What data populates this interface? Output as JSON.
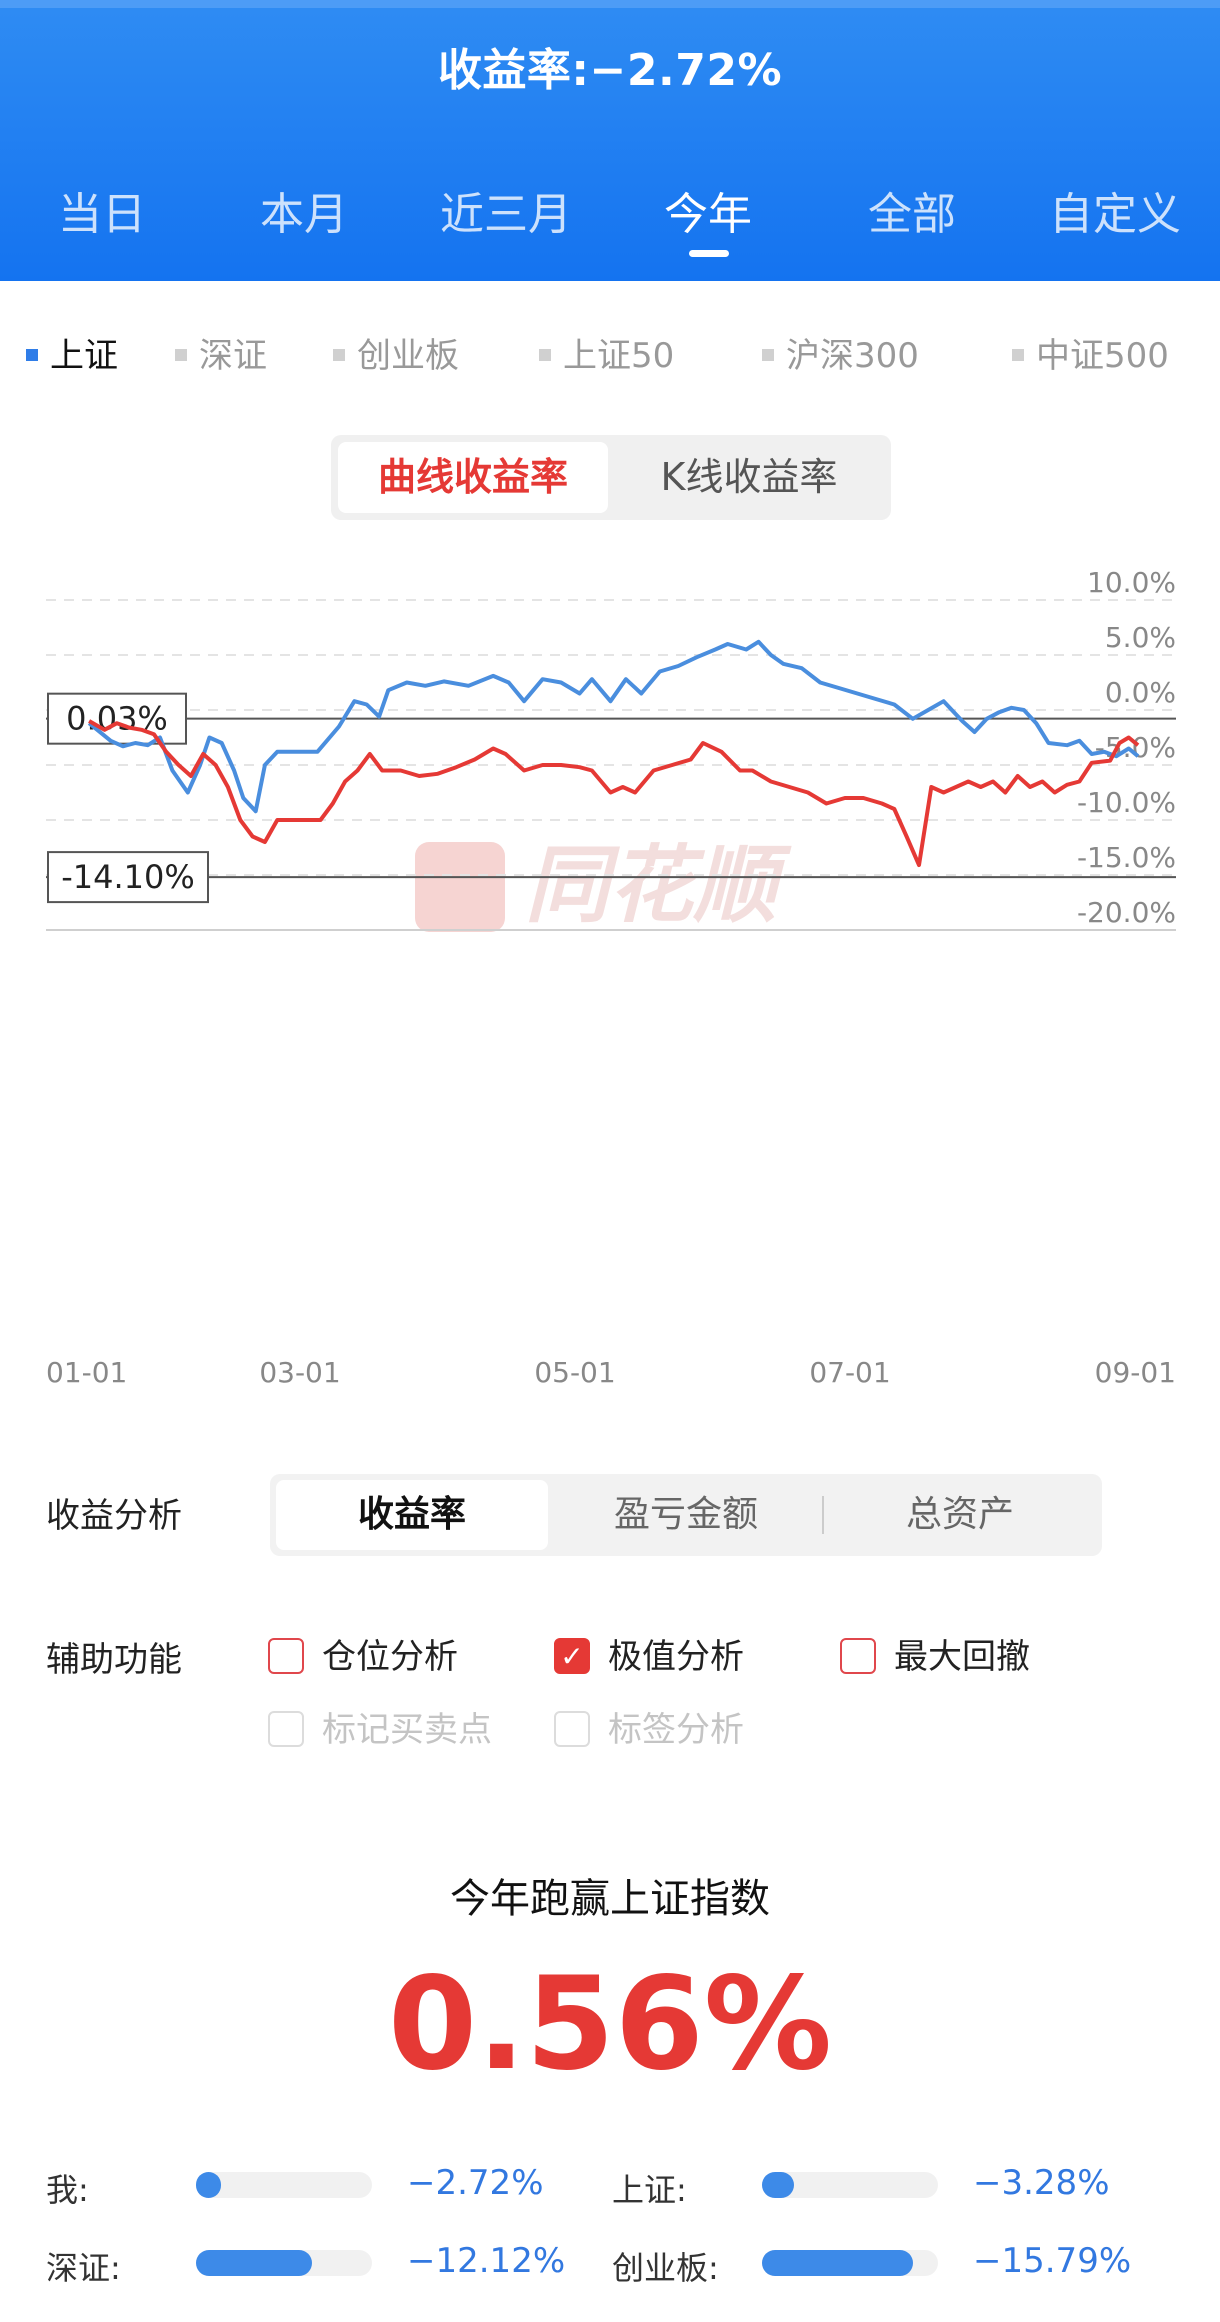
{
  "header": {
    "title": "收益率:−2.72%",
    "tabs": [
      "当日",
      "本月",
      "近三月",
      "今年",
      "全部",
      "自定义"
    ],
    "active_tab": "今年"
  },
  "indices": {
    "items": [
      "上证",
      "深证",
      "创业板",
      "上证50",
      "沪深300",
      "中证500"
    ],
    "active": "上证"
  },
  "chart_toggle": {
    "options": [
      "曲线收益率",
      "K线收益率"
    ],
    "selected": "曲线收益率"
  },
  "watermark": "同花顺",
  "chart_data": {
    "type": "line",
    "x_tick_labels": [
      "01-01",
      "03-01",
      "05-01",
      "07-01",
      "09-01"
    ],
    "y_tick_labels": [
      "10.0%",
      "5.0%",
      "0.0%",
      "-5.0%",
      "-10.0%",
      "-15.0%",
      "-20.0%"
    ],
    "ylim": [
      -20,
      10
    ],
    "y_unit": "%",
    "grid": true,
    "annotations": [
      "0.03%",
      "-14.10%"
    ],
    "series": [
      {
        "color": "#4a8ede",
        "points": [
          [
            1,
            -1.2
          ],
          [
            8,
            -2.8
          ],
          [
            12,
            -3.3
          ],
          [
            16,
            -3.0
          ],
          [
            20,
            -3.2
          ],
          [
            24,
            -2.5
          ],
          [
            28,
            -5.5
          ],
          [
            33,
            -7.5
          ],
          [
            37,
            -5.0
          ],
          [
            40,
            -2.5
          ],
          [
            44,
            -3.0
          ],
          [
            48,
            -5.5
          ],
          [
            51,
            -8.0
          ],
          [
            55,
            -9.2
          ],
          [
            58,
            -5.0
          ],
          [
            62,
            -3.8
          ],
          [
            70,
            -3.8
          ],
          [
            75,
            -3.8
          ],
          [
            82,
            -1.5
          ],
          [
            87,
            0.8
          ],
          [
            91,
            0.5
          ],
          [
            95,
            -0.6
          ],
          [
            98,
            1.8
          ],
          [
            104,
            2.5
          ],
          [
            110,
            2.2
          ],
          [
            116,
            2.6
          ],
          [
            124,
            2.2
          ],
          [
            132,
            3.1
          ],
          [
            137,
            2.5
          ],
          [
            142,
            0.8
          ],
          [
            148,
            2.8
          ],
          [
            154,
            2.5
          ],
          [
            160,
            1.5
          ],
          [
            164,
            2.8
          ],
          [
            170,
            0.8
          ],
          [
            175,
            2.8
          ],
          [
            180,
            1.5
          ],
          [
            186,
            3.5
          ],
          [
            192,
            4.0
          ],
          [
            198,
            4.8
          ],
          [
            204,
            5.5
          ],
          [
            208,
            6.0
          ],
          [
            214,
            5.5
          ],
          [
            218,
            6.2
          ],
          [
            222,
            5.0
          ],
          [
            226,
            4.2
          ],
          [
            232,
            3.8
          ],
          [
            238,
            2.5
          ],
          [
            244,
            2.0
          ],
          [
            250,
            1.5
          ],
          [
            256,
            1.0
          ],
          [
            262,
            0.5
          ],
          [
            268,
            -0.8
          ],
          [
            273,
            0.0
          ],
          [
            278,
            0.8
          ],
          [
            284,
            -1.0
          ],
          [
            288,
            -2.0
          ],
          [
            292,
            -0.8
          ],
          [
            296,
            -0.2
          ],
          [
            300,
            0.2
          ],
          [
            304,
            0.0
          ],
          [
            308,
            -1.2
          ],
          [
            312,
            -3.0
          ],
          [
            318,
            -3.2
          ],
          [
            322,
            -2.8
          ],
          [
            326,
            -4.0
          ],
          [
            330,
            -3.8
          ],
          [
            334,
            -4.2
          ],
          [
            338,
            -3.5
          ],
          [
            341,
            -4.2
          ]
        ]
      },
      {
        "color": "#e53935",
        "points": [
          [
            1,
            -1.0
          ],
          [
            6,
            -1.8
          ],
          [
            10,
            -1.2
          ],
          [
            14,
            -1.6
          ],
          [
            18,
            -1.8
          ],
          [
            22,
            -2.2
          ],
          [
            26,
            -3.8
          ],
          [
            30,
            -5.0
          ],
          [
            34,
            -6.0
          ],
          [
            38,
            -4.0
          ],
          [
            42,
            -5.0
          ],
          [
            46,
            -7.0
          ],
          [
            50,
            -10.0
          ],
          [
            54,
            -11.5
          ],
          [
            58,
            -12.0
          ],
          [
            62,
            -10.0
          ],
          [
            72,
            -10.0
          ],
          [
            76,
            -10.0
          ],
          [
            80,
            -8.5
          ],
          [
            84,
            -6.5
          ],
          [
            88,
            -5.5
          ],
          [
            92,
            -4.0
          ],
          [
            96,
            -5.5
          ],
          [
            102,
            -5.5
          ],
          [
            108,
            -6.0
          ],
          [
            114,
            -5.8
          ],
          [
            120,
            -5.2
          ],
          [
            126,
            -4.5
          ],
          [
            132,
            -3.5
          ],
          [
            136,
            -4.0
          ],
          [
            142,
            -5.5
          ],
          [
            148,
            -5.0
          ],
          [
            154,
            -5.0
          ],
          [
            160,
            -5.2
          ],
          [
            164,
            -5.5
          ],
          [
            170,
            -7.5
          ],
          [
            174,
            -7.0
          ],
          [
            178,
            -7.5
          ],
          [
            184,
            -5.5
          ],
          [
            190,
            -5.0
          ],
          [
            196,
            -4.5
          ],
          [
            200,
            -3.0
          ],
          [
            206,
            -3.8
          ],
          [
            212,
            -5.5
          ],
          [
            216,
            -5.5
          ],
          [
            222,
            -6.5
          ],
          [
            228,
            -7.0
          ],
          [
            234,
            -7.5
          ],
          [
            240,
            -8.5
          ],
          [
            246,
            -8.0
          ],
          [
            252,
            -8.0
          ],
          [
            258,
            -8.5
          ],
          [
            262,
            -9.0
          ],
          [
            266,
            -11.5
          ],
          [
            270,
            -14.1
          ],
          [
            274,
            -7.0
          ],
          [
            278,
            -7.5
          ],
          [
            282,
            -7.0
          ],
          [
            286,
            -6.5
          ],
          [
            290,
            -7.0
          ],
          [
            294,
            -6.5
          ],
          [
            298,
            -7.5
          ],
          [
            302,
            -6.0
          ],
          [
            306,
            -7.0
          ],
          [
            310,
            -6.5
          ],
          [
            314,
            -7.5
          ],
          [
            318,
            -6.8
          ],
          [
            322,
            -6.5
          ],
          [
            326,
            -4.8
          ],
          [
            332,
            -4.6
          ],
          [
            335,
            -3.0
          ],
          [
            338,
            -2.5
          ],
          [
            341,
            -3.2
          ]
        ]
      }
    ]
  },
  "analysis": {
    "label": "收益分析",
    "segments": [
      "收益率",
      "盈亏金额",
      "总资产"
    ],
    "selected": "收益率"
  },
  "aux": {
    "label": "辅助功能",
    "options": [
      {
        "label": "仓位分析",
        "checked": false,
        "disabled": false
      },
      {
        "label": "极值分析",
        "checked": true,
        "disabled": false
      },
      {
        "label": "最大回撤",
        "checked": false,
        "disabled": false
      },
      {
        "label": "标记买卖点",
        "checked": false,
        "disabled": true
      },
      {
        "label": "标签分析",
        "checked": false,
        "disabled": true
      }
    ]
  },
  "beat": {
    "title": "今年跑赢上证指数",
    "value": "0.56%"
  },
  "comparison": [
    {
      "label": "我:",
      "value": "−2.72%",
      "fill": 0.14
    },
    {
      "label": "上证:",
      "value": "−3.28%",
      "fill": 0.18
    },
    {
      "label": "深证:",
      "value": "−12.12%",
      "fill": 0.66
    },
    {
      "label": "创业板:",
      "value": "−15.79%",
      "fill": 0.86
    }
  ]
}
